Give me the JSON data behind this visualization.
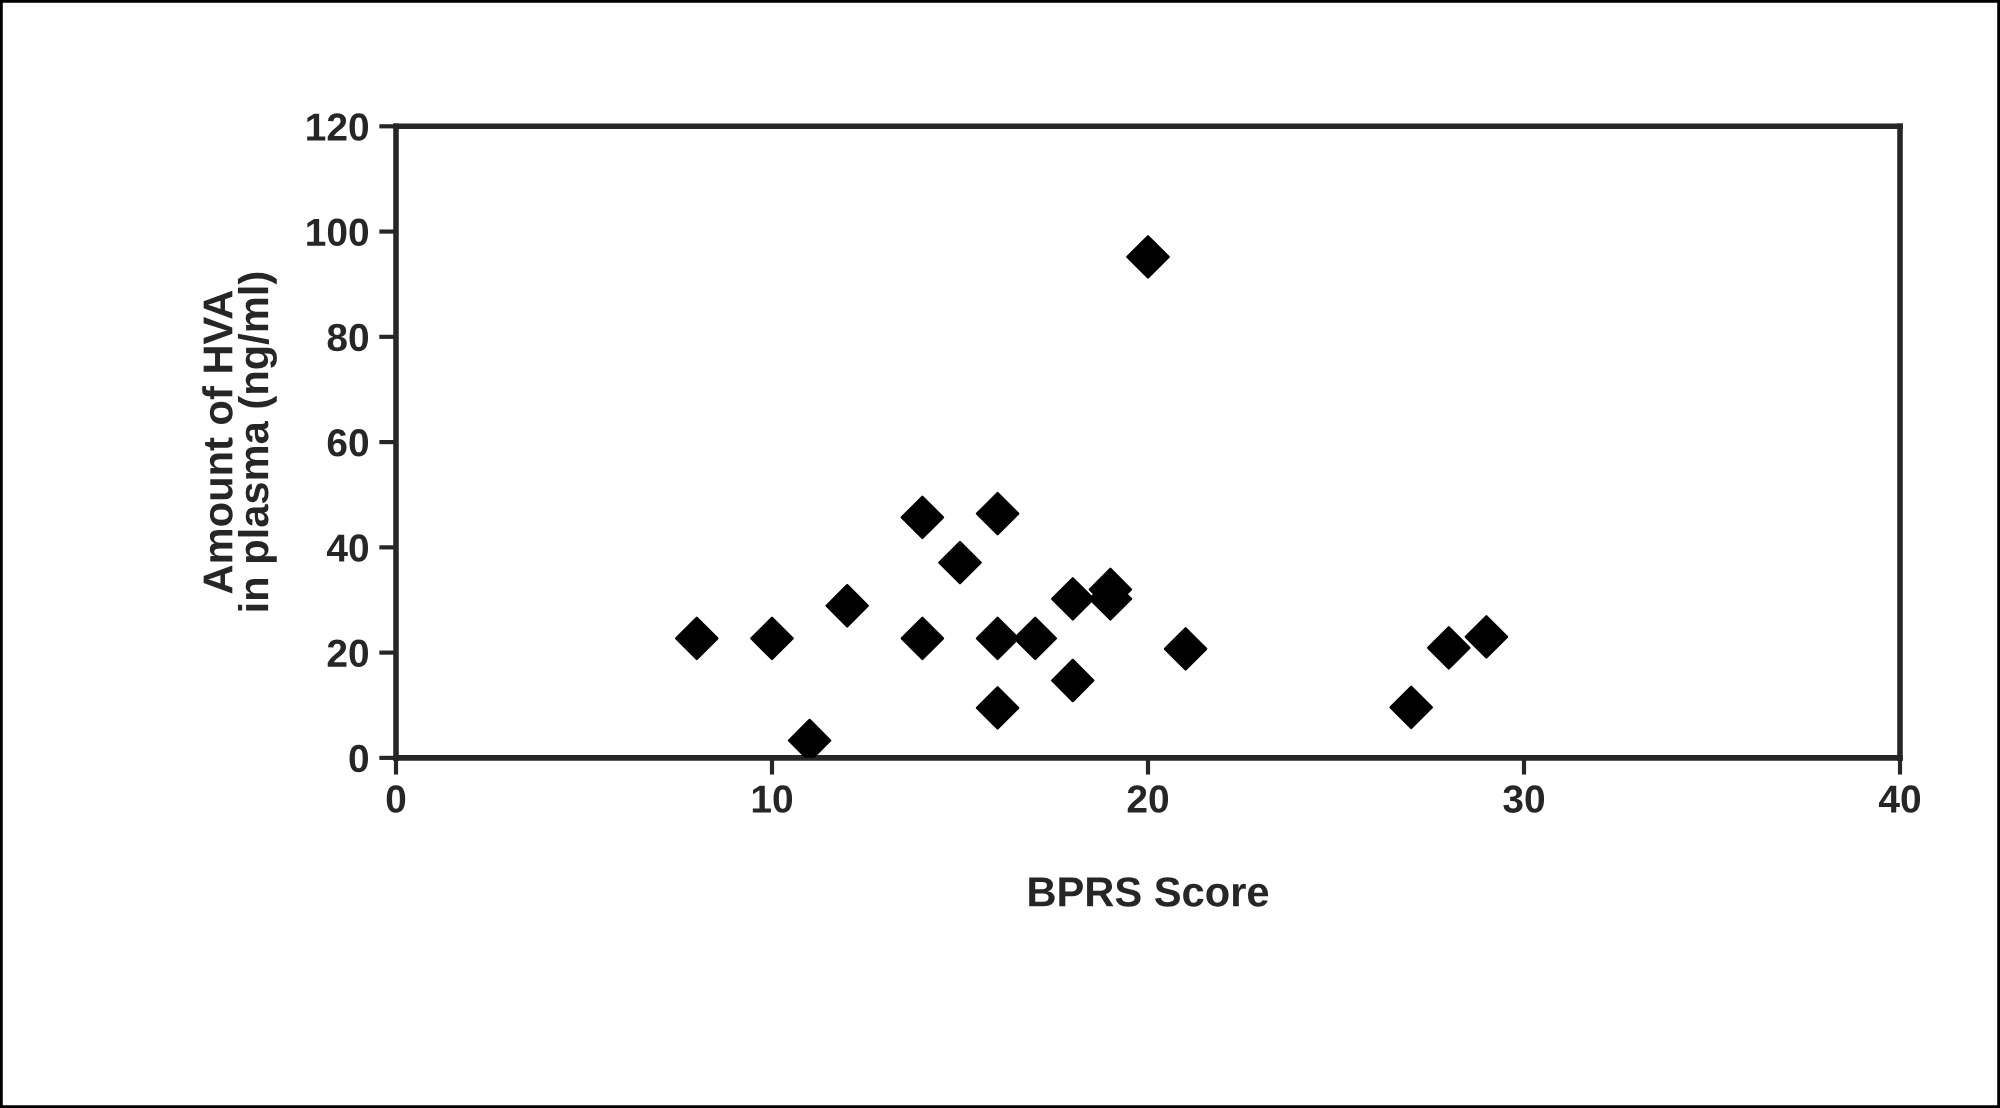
{
  "chart_data": {
    "type": "scatter",
    "xlabel": "BPRS Score",
    "ylabel": "Amount of HVA\nin plasma (ng/ml)",
    "x": [
      8,
      10,
      11,
      12,
      14,
      14,
      15,
      16,
      16,
      16,
      17,
      18,
      18,
      19,
      19,
      20,
      21,
      27,
      28,
      29
    ],
    "series": [
      {
        "color": "#000000",
        "values": [
          22.7,
          22.7,
          3.3,
          28.9,
          45.7,
          22.7,
          37.1,
          46.4,
          22.7,
          9.5,
          22.7,
          30.2,
          14.7,
          32,
          30.2,
          95.2,
          20.7,
          9.6,
          20.9,
          23
        ]
      }
    ],
    "xlim": [
      0,
      40
    ],
    "xticks": [
      0,
      10,
      20,
      30,
      40
    ],
    "ylim": [
      0,
      120
    ],
    "yticks": [
      0,
      20,
      40,
      60,
      80,
      100,
      120
    ],
    "marker": "diamond",
    "grid": false
  }
}
